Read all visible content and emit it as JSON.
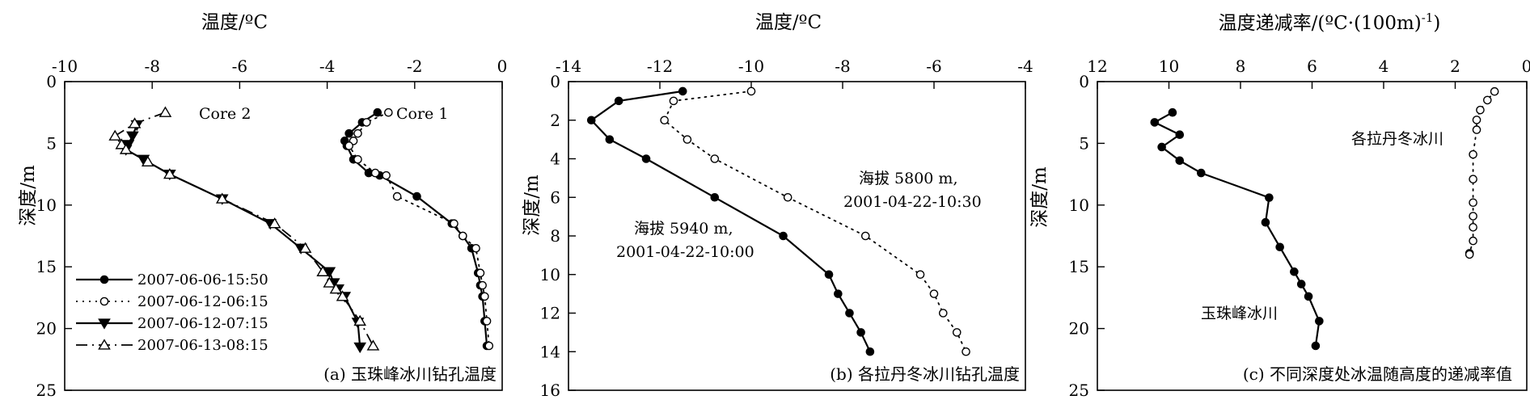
{
  "chart_data": [
    {
      "type": "line",
      "title": "",
      "xlabel": "温度/ºC",
      "ylabel": "深度/m",
      "caption": "(a) 玉珠峰冰川钻孔温度",
      "xlim": [
        -10,
        0
      ],
      "ylim": [
        0,
        25
      ],
      "y_inverted": true,
      "x_axis_position": "top",
      "x_ticks": [
        "-10",
        "-8",
        "-6",
        "-4",
        "-2",
        "0"
      ],
      "y_ticks": [
        "0",
        "5",
        "10",
        "15",
        "20",
        "25"
      ],
      "legend_position": "bottom-left",
      "annotations": [
        "Core 2",
        "Core 1"
      ],
      "series": [
        {
          "name": "2007-06-06-15:50",
          "style": "solid-filled-circle",
          "x": [
            -2.85,
            -3.2,
            -3.5,
            -3.6,
            -3.55,
            -3.4,
            -3.05,
            -2.8,
            -1.95,
            -1.15,
            -0.9,
            -0.7,
            -0.55,
            -0.5,
            -0.45,
            -0.4,
            -0.35
          ],
          "y": [
            2.5,
            3.3,
            4.2,
            4.8,
            5.2,
            6.3,
            7.4,
            7.6,
            9.3,
            11.5,
            12.5,
            13.5,
            15.5,
            16.5,
            17.4,
            19.4,
            21.4
          ]
        },
        {
          "name": "2007-06-12-06:15",
          "style": "dotted-open-circle",
          "x": [
            -2.6,
            -3.1,
            -3.3,
            -3.4,
            -3.5,
            -3.3,
            -2.9,
            -2.65,
            -2.4,
            -1.1,
            -0.9,
            -0.6,
            -0.5,
            -0.45,
            -0.4,
            -0.35,
            -0.3
          ],
          "y": [
            2.5,
            3.3,
            4.2,
            4.8,
            5.2,
            6.3,
            7.4,
            7.6,
            9.3,
            11.5,
            12.5,
            13.5,
            15.5,
            16.5,
            17.4,
            19.4,
            21.4
          ]
        },
        {
          "name": "2007-06-12-07:15",
          "style": "solid-filled-triangle-down",
          "x": [
            -8.35,
            -8.45,
            -8.55,
            -8.6,
            -8.2,
            -7.6,
            -6.4,
            -5.3,
            -4.6,
            -3.95,
            -3.85,
            -3.75,
            -3.6,
            -3.3,
            -3.25
          ],
          "y": [
            3.5,
            4.4,
            5.1,
            5.5,
            6.3,
            7.5,
            9.5,
            11.5,
            13.5,
            15.4,
            16.3,
            16.8,
            17.4,
            19.5,
            21.5
          ]
        },
        {
          "name": "2007-06-13-08:15",
          "style": "dashdot-open-triangle",
          "x": [
            -7.7,
            -8.4,
            -8.85,
            -8.7,
            -8.6,
            -8.1,
            -7.6,
            -6.4,
            -5.2,
            -4.5,
            -4.1,
            -3.95,
            -3.8,
            -3.65,
            -3.25,
            -2.95
          ],
          "y": [
            2.5,
            3.4,
            4.4,
            5.1,
            5.5,
            6.5,
            7.5,
            9.5,
            11.5,
            13.5,
            15.4,
            16.3,
            16.8,
            17.4,
            19.4,
            21.4
          ]
        }
      ]
    },
    {
      "type": "line",
      "title": "",
      "xlabel": "温度/ºC",
      "ylabel": "深度/m",
      "caption": "(b) 各拉丹冬冰川钻孔温度",
      "xlim": [
        -14,
        -4
      ],
      "ylim": [
        0,
        16
      ],
      "y_inverted": true,
      "x_axis_position": "top",
      "x_ticks": [
        "-14",
        "-12",
        "-10",
        "-8",
        "-6",
        "-4"
      ],
      "y_ticks": [
        "0",
        "2",
        "4",
        "6",
        "8",
        "10",
        "12",
        "14",
        "16"
      ],
      "series": [
        {
          "name": "海拔 5940 m,\n2001-04-22-10:00",
          "label_lines": [
            "海拔 5940 m,",
            "2001-04-22-10:00"
          ],
          "style": "solid-filled-circle",
          "x": [
            -11.5,
            -12.9,
            -13.5,
            -13.1,
            -12.3,
            -10.8,
            -9.3,
            -8.3,
            -8.1,
            -7.85,
            -7.6,
            -7.4
          ],
          "y": [
            0.5,
            1.0,
            2.0,
            3.0,
            4.0,
            6.0,
            8.0,
            10.0,
            11.0,
            12.0,
            13.0,
            14.0
          ]
        },
        {
          "name": "海拔 5800 m,\n2001-04-22-10:30",
          "label_lines": [
            "海拔 5800 m,",
            "2001-04-22-10:30"
          ],
          "style": "dotted-open-circle",
          "x": [
            -10.0,
            -11.7,
            -11.9,
            -11.4,
            -10.8,
            -9.2,
            -7.5,
            -6.3,
            -6.0,
            -5.8,
            -5.5,
            -5.3
          ],
          "y": [
            0.5,
            1.0,
            2.0,
            3.0,
            4.0,
            6.0,
            8.0,
            10.0,
            11.0,
            12.0,
            13.0,
            14.0
          ]
        }
      ]
    },
    {
      "type": "line",
      "title": "",
      "xlabel": "温度递减率/(ºC·(100m)-1)",
      "xlabel_parts": [
        "温度递减率/(ºC·(100m)",
        "-1",
        ")"
      ],
      "ylabel": "深度/m",
      "caption": "(c) 不同深度处冰温随高度的递减率值",
      "xlim": [
        12,
        0
      ],
      "x_reversed": true,
      "ylim": [
        0,
        25
      ],
      "y_inverted": true,
      "x_axis_position": "top",
      "x_ticks": [
        "12",
        "10",
        "8",
        "6",
        "4",
        "2",
        "0"
      ],
      "y_ticks": [
        "0",
        "5",
        "10",
        "15",
        "20",
        "25"
      ],
      "series": [
        {
          "name": "玉珠峰冰川",
          "style": "solid-filled-circle",
          "x": [
            9.9,
            10.4,
            9.7,
            10.2,
            9.7,
            9.1,
            7.2,
            7.3,
            6.9,
            6.5,
            6.3,
            6.1,
            5.8,
            5.9
          ],
          "y": [
            2.5,
            3.3,
            4.3,
            5.3,
            6.4,
            7.4,
            9.4,
            11.4,
            13.4,
            15.4,
            16.4,
            17.4,
            19.4,
            21.4
          ]
        },
        {
          "name": "各拉丹冬冰川",
          "style": "dotted-open-circle",
          "x": [
            0.9,
            1.1,
            1.3,
            1.4,
            1.4,
            1.5,
            1.5,
            1.5,
            1.5,
            1.5,
            1.5,
            1.6,
            1.6
          ],
          "y": [
            0.8,
            1.5,
            2.3,
            3.1,
            3.9,
            5.9,
            7.9,
            9.8,
            10.9,
            11.8,
            12.9,
            13.9,
            14.0
          ]
        }
      ]
    }
  ]
}
